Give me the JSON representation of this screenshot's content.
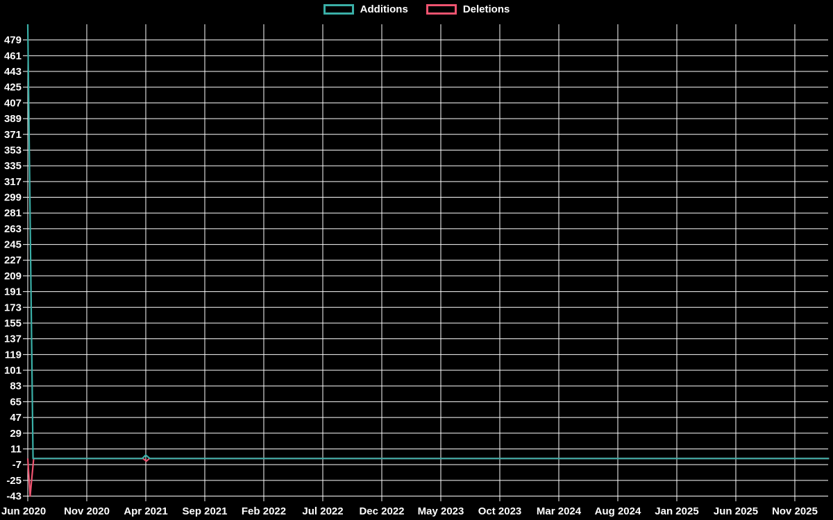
{
  "chart": {
    "title": "",
    "background_color": "#000000",
    "grid_color": "#ffffff",
    "text_color": "#ffffff"
  },
  "legend": {
    "items": [
      {
        "label": "Additions",
        "color": "#3aafa7"
      },
      {
        "label": "Deletions",
        "color": "#ef5470"
      }
    ]
  },
  "chart_data": {
    "type": "line",
    "title": "",
    "xlabel": "",
    "ylabel": "",
    "grid": true,
    "legend_position": "top-center",
    "background": "#000000",
    "categories": [
      "Jun 2020",
      "Nov 2020",
      "Apr 2021",
      "Sep 2021",
      "Feb 2022",
      "Jul 2022",
      "Dec 2022",
      "May 2023",
      "Oct 2023",
      "Mar 2024",
      "Aug 2024",
      "Jan 2025",
      "Jun 2025",
      "Nov 2025"
    ],
    "y_ticks": [
      479,
      461,
      443,
      425,
      407,
      389,
      371,
      353,
      335,
      317,
      299,
      281,
      263,
      245,
      227,
      209,
      191,
      173,
      155,
      137,
      119,
      101,
      83,
      65,
      47,
      29,
      11,
      -7,
      -25,
      -43
    ],
    "ylim": [
      -43.4,
      497
    ],
    "x_unit": "months since Jun 2020",
    "series": [
      {
        "name": "Additions",
        "color": "#3aafa7",
        "values": [
          497,
          0,
          4,
          0,
          0,
          0,
          0,
          0,
          0,
          0,
          0,
          0,
          0,
          0
        ],
        "points": [
          [
            0,
            497
          ],
          [
            0.45,
            0
          ],
          [
            9.7,
            0
          ],
          [
            10,
            4
          ],
          [
            10.35,
            0
          ],
          [
            67.9,
            0
          ]
        ]
      },
      {
        "name": "Deletions",
        "color": "#ef5470",
        "values": [
          -43,
          0,
          -3,
          0,
          0,
          0,
          0,
          0,
          0,
          0,
          0,
          0,
          0,
          0
        ],
        "points": [
          [
            0,
            0
          ],
          [
            0.2,
            -43
          ],
          [
            0.5,
            0
          ],
          [
            9.75,
            0
          ],
          [
            10.05,
            -3
          ],
          [
            10.3,
            0
          ],
          [
            67.9,
            0
          ]
        ]
      }
    ],
    "annotations": [
      "Large spike at Jun 2020: Additions ~497, Deletions ~-43",
      "Small spike at Apr 2021: Additions ~4, Deletions ~-3",
      "Both series flat at 0 for all other dates"
    ]
  }
}
